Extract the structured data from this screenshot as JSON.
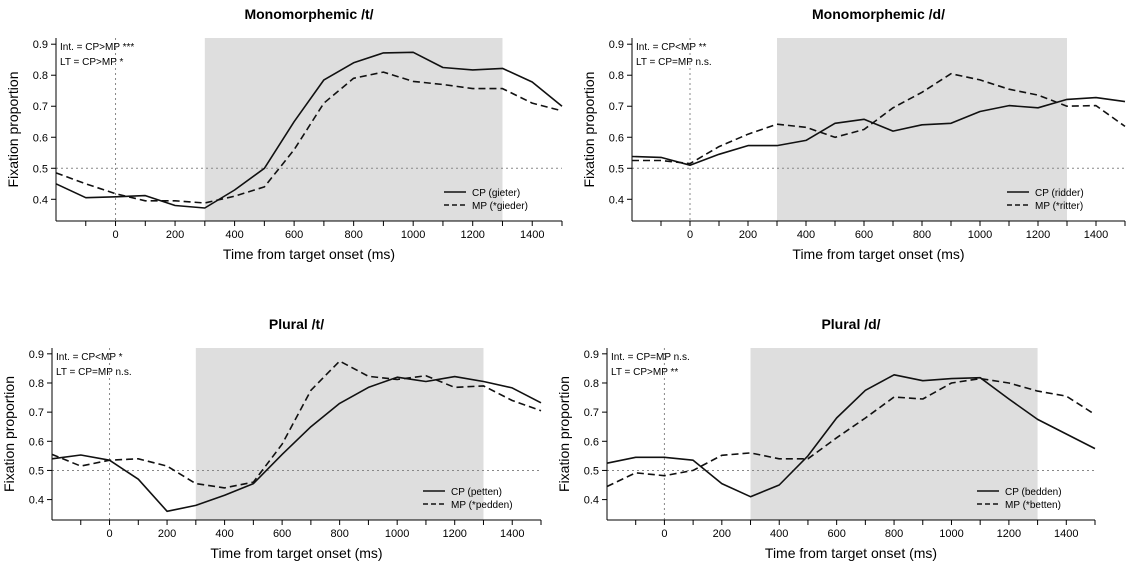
{
  "chart_data": [
    {
      "type": "line",
      "title": "Monomorphemic /t/",
      "xlabel": "Time from target onset (ms)",
      "ylabel": "Fixation proportion",
      "xlim": [
        -200,
        1500
      ],
      "ylim": [
        0.33,
        0.92
      ],
      "xticks": [
        "0",
        "200",
        "400",
        "600",
        "800",
        "1000",
        "1200",
        "1400"
      ],
      "yticks": [
        "0.4",
        "0.5",
        "0.6",
        "0.7",
        "0.8",
        "0.9"
      ],
      "shaded_region": [
        300,
        1300
      ],
      "reference_hline": 0.5,
      "reference_vline": 0,
      "annotations": [
        "Int. = CP>MP ***",
        "LT  = CP>MP *"
      ],
      "legend_position": "bottom-right",
      "series": [
        {
          "name": "CP (gieter)",
          "style": "solid",
          "x": [
            -200,
            -100,
            0,
            100,
            200,
            300,
            400,
            500,
            600,
            700,
            800,
            900,
            1000,
            1100,
            1200,
            1300,
            1400,
            1500
          ],
          "values": [
            0.45,
            0.405,
            0.408,
            0.412,
            0.38,
            0.372,
            0.43,
            0.5,
            0.65,
            0.785,
            0.84,
            0.872,
            0.874,
            0.825,
            0.817,
            0.822,
            0.778,
            0.7
          ]
        },
        {
          "name": "MP (*gieder)",
          "style": "dashed",
          "x": [
            -200,
            -100,
            0,
            100,
            200,
            300,
            400,
            500,
            600,
            700,
            800,
            900,
            1000,
            1100,
            1200,
            1300,
            1400,
            1500
          ],
          "values": [
            0.485,
            0.45,
            0.418,
            0.395,
            0.395,
            0.388,
            0.41,
            0.44,
            0.56,
            0.71,
            0.79,
            0.81,
            0.78,
            0.77,
            0.757,
            0.757,
            0.71,
            0.685
          ]
        }
      ]
    },
    {
      "type": "line",
      "title": "Monomorphemic /d/",
      "xlabel": "Time from target onset (ms)",
      "ylabel": "Fixation proportion",
      "xlim": [
        -200,
        1500
      ],
      "ylim": [
        0.33,
        0.92
      ],
      "xticks": [
        "0",
        "200",
        "400",
        "600",
        "800",
        "1000",
        "1200",
        "1400"
      ],
      "yticks": [
        "0.4",
        "0.5",
        "0.6",
        "0.7",
        "0.8",
        "0.9"
      ],
      "shaded_region": [
        300,
        1300
      ],
      "reference_hline": 0.5,
      "reference_vline": 0,
      "annotations": [
        "Int. = CP<MP **",
        "LT  = CP=MP n.s."
      ],
      "legend_position": "bottom-right",
      "series": [
        {
          "name": "CP (ridder)",
          "style": "solid",
          "x": [
            -200,
            -100,
            0,
            100,
            200,
            300,
            400,
            500,
            600,
            700,
            800,
            900,
            1000,
            1100,
            1200,
            1300,
            1400,
            1500
          ],
          "values": [
            0.538,
            0.535,
            0.51,
            0.545,
            0.573,
            0.573,
            0.59,
            0.645,
            0.658,
            0.62,
            0.64,
            0.645,
            0.683,
            0.702,
            0.695,
            0.722,
            0.728,
            0.715
          ]
        },
        {
          "name": "MP (*ritter)",
          "style": "dashed",
          "x": [
            -200,
            -100,
            0,
            100,
            200,
            300,
            400,
            500,
            600,
            700,
            800,
            900,
            1000,
            1100,
            1200,
            1300,
            1400,
            1500
          ],
          "values": [
            0.525,
            0.525,
            0.515,
            0.57,
            0.61,
            0.642,
            0.632,
            0.6,
            0.625,
            0.695,
            0.745,
            0.805,
            0.785,
            0.755,
            0.736,
            0.7,
            0.702,
            0.635
          ]
        }
      ]
    },
    {
      "type": "line",
      "title": "Plural /t/",
      "xlabel": "Time from target onset (ms)",
      "ylabel": "Fixation proportion",
      "xlim": [
        -200,
        1500
      ],
      "ylim": [
        0.33,
        0.92
      ],
      "xticks": [
        "0",
        "200",
        "400",
        "600",
        "800",
        "1000",
        "1200",
        "1400"
      ],
      "yticks": [
        "0.4",
        "0.5",
        "0.6",
        "0.7",
        "0.8",
        "0.9"
      ],
      "shaded_region": [
        300,
        1300
      ],
      "reference_hline": 0.5,
      "reference_vline": 0,
      "annotations": [
        "Int. = CP<MP *",
        "LT  = CP=MP n.s."
      ],
      "legend_position": "bottom-right",
      "series": [
        {
          "name": "CP (petten)",
          "style": "solid",
          "x": [
            -200,
            -100,
            0,
            100,
            200,
            300,
            400,
            500,
            600,
            700,
            800,
            900,
            1000,
            1100,
            1200,
            1300,
            1400,
            1500
          ],
          "values": [
            0.54,
            0.553,
            0.535,
            0.47,
            0.36,
            0.38,
            0.415,
            0.455,
            0.555,
            0.65,
            0.73,
            0.785,
            0.82,
            0.805,
            0.822,
            0.805,
            0.783,
            0.732
          ]
        },
        {
          "name": "MP (*pedden)",
          "style": "dashed",
          "x": [
            -200,
            -100,
            0,
            100,
            200,
            300,
            400,
            500,
            600,
            700,
            800,
            900,
            1000,
            1100,
            1200,
            1300,
            1400,
            1500
          ],
          "values": [
            0.555,
            0.515,
            0.535,
            0.54,
            0.515,
            0.455,
            0.44,
            0.46,
            0.59,
            0.775,
            0.875,
            0.823,
            0.812,
            0.825,
            0.785,
            0.79,
            0.74,
            0.705
          ]
        }
      ]
    },
    {
      "type": "line",
      "title": "Plural /d/",
      "xlabel": "Time from target onset (ms)",
      "ylabel": "Fixation proportion",
      "xlim": [
        -200,
        1500
      ],
      "ylim": [
        0.33,
        0.92
      ],
      "xticks": [
        "0",
        "200",
        "400",
        "600",
        "800",
        "1000",
        "1200",
        "1400"
      ],
      "yticks": [
        "0.4",
        "0.5",
        "0.6",
        "0.7",
        "0.8",
        "0.9"
      ],
      "shaded_region": [
        300,
        1300
      ],
      "reference_hline": 0.5,
      "reference_vline": 0,
      "annotations": [
        "Int. = CP=MP n.s.",
        "LT  = CP>MP **"
      ],
      "legend_position": "bottom-right",
      "series": [
        {
          "name": "CP (bedden)",
          "style": "solid",
          "x": [
            -200,
            -100,
            0,
            100,
            200,
            300,
            400,
            500,
            600,
            700,
            800,
            900,
            1000,
            1100,
            1200,
            1300,
            1400,
            1500
          ],
          "values": [
            0.525,
            0.545,
            0.545,
            0.535,
            0.455,
            0.41,
            0.45,
            0.55,
            0.68,
            0.775,
            0.828,
            0.808,
            0.815,
            0.818,
            0.745,
            0.675,
            0.625,
            0.575
          ]
        },
        {
          "name": "MP (*betten)",
          "style": "dashed",
          "x": [
            -200,
            -100,
            0,
            100,
            200,
            300,
            400,
            500,
            600,
            700,
            800,
            900,
            1000,
            1100,
            1200,
            1300,
            1400,
            1500
          ],
          "values": [
            0.445,
            0.492,
            0.482,
            0.5,
            0.552,
            0.56,
            0.54,
            0.54,
            0.612,
            0.68,
            0.752,
            0.745,
            0.8,
            0.815,
            0.8,
            0.772,
            0.755,
            0.692
          ]
        }
      ]
    }
  ]
}
